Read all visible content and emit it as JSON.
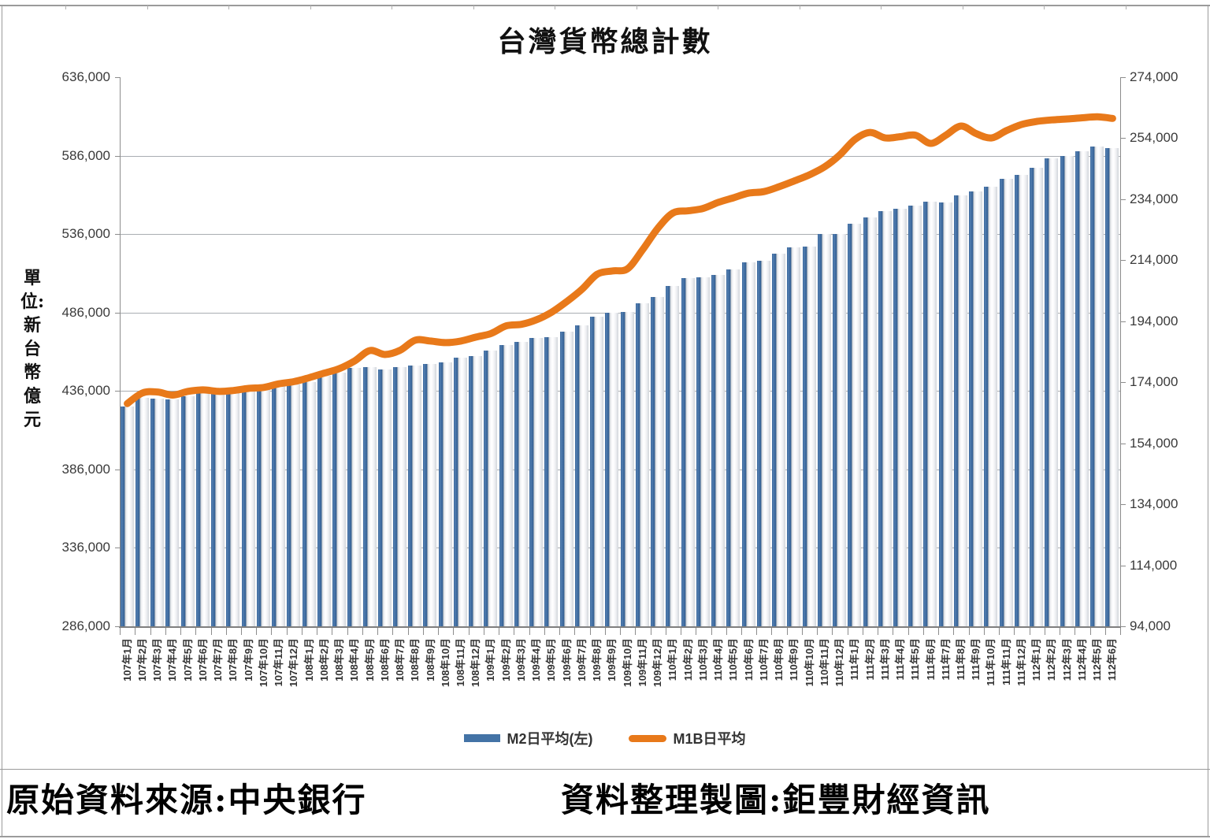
{
  "title": "台灣貨幣總計數",
  "y_axis_left": {
    "unit_label": "單位:新台幣億元",
    "tick_labels": [
      "636,000",
      "586,000",
      "536,000",
      "486,000",
      "436,000",
      "386,000",
      "336,000",
      "286,000"
    ],
    "min": 286000,
    "max": 636000,
    "step": 50000
  },
  "y_axis_right": {
    "tick_labels": [
      "274,000",
      "254,000",
      "234,000",
      "214,000",
      "194,000",
      "174,000",
      "154,000",
      "134,000",
      "114,000",
      "94,000"
    ],
    "min": 94000,
    "max": 274000,
    "step": 20000
  },
  "legend": {
    "m2_label": "M2日平均(左)",
    "m1b_label": "M1B日平均"
  },
  "footer": {
    "source_label": "原始資料來源:中央銀行",
    "credit_label": "資料整理製圖:鉅豐財經資訊"
  },
  "colors": {
    "bar_blue": "#4373A6",
    "line_orange": "#E8791A",
    "gridline": "#A9ADB2",
    "axis": "#8C8C8C"
  },
  "chart_data": {
    "type": "combo",
    "title": "台灣貨幣總計數",
    "unit": "新台幣億元",
    "legend_position": "bottom",
    "grid": true,
    "left_axis_range": [
      286000,
      636000
    ],
    "right_axis_range": [
      94000,
      274000
    ],
    "categories": [
      "107年1月",
      "107年2月",
      "107年3月",
      "107年4月",
      "107年5月",
      "107年6月",
      "107年7月",
      "107年8月",
      "107年9月",
      "107年10月",
      "107年11月",
      "107年12月",
      "108年1月",
      "108年2月",
      "108年3月",
      "108年4月",
      "108年5月",
      "108年6月",
      "108年7月",
      "108年8月",
      "108年9月",
      "108年10月",
      "108年11月",
      "108年12月",
      "109年1月",
      "109年2月",
      "109年3月",
      "109年4月",
      "109年5月",
      "109年6月",
      "109年7月",
      "109年8月",
      "109年9月",
      "109年10月",
      "109年11月",
      "109年12月",
      "110年1月",
      "110年2月",
      "110年3月",
      "110年4月",
      "110年5月",
      "110年6月",
      "110年7月",
      "110年8月",
      "110年9月",
      "110年10月",
      "110年11月",
      "110年12月",
      "111年1月",
      "111年2月",
      "111年3月",
      "111年4月",
      "111年5月",
      "111年6月",
      "111年7月",
      "111年8月",
      "111年9月",
      "111年10月",
      "111年11月",
      "111年12月",
      "112年1月",
      "112年2月",
      "112年3月",
      "112年4月",
      "112年5月",
      "112年6月"
    ],
    "series": [
      {
        "name": "M2日平均(左)",
        "type": "bar",
        "axis": "left",
        "color": "#4373A6",
        "values": [
          426000,
          431500,
          431000,
          430500,
          432500,
          434500,
          436000,
          437500,
          438200,
          437500,
          439200,
          440200,
          441700,
          445500,
          447700,
          450500,
          451200,
          449500,
          451200,
          452300,
          453400,
          454000,
          457500,
          458300,
          461800,
          465500,
          467300,
          469800,
          470300,
          473800,
          478000,
          483400,
          485900,
          486400,
          492000,
          496000,
          503000,
          508000,
          508600,
          510000,
          513500,
          518000,
          519000,
          523500,
          527500,
          528000,
          536100,
          536000,
          542600,
          546600,
          550600,
          552100,
          554100,
          556500,
          556000,
          560500,
          563000,
          566000,
          571000,
          574000,
          578500,
          584500,
          586000,
          589000,
          592000,
          591000
        ]
      },
      {
        "name": "M1B日平均",
        "type": "line",
        "axis": "right",
        "color": "#E8791A",
        "values": [
          167000,
          170500,
          170800,
          169800,
          171000,
          171500,
          171000,
          171300,
          172000,
          172300,
          173500,
          174200,
          175500,
          177000,
          178500,
          181000,
          184400,
          183100,
          184500,
          187800,
          187500,
          187000,
          187500,
          188800,
          190000,
          192500,
          193000,
          194500,
          197000,
          200500,
          204500,
          209400,
          210500,
          211200,
          217500,
          224500,
          229500,
          230200,
          231000,
          233000,
          234500,
          236000,
          236500,
          238100,
          240000,
          242000,
          244600,
          248500,
          253600,
          255900,
          254100,
          254500,
          255000,
          252300,
          255000,
          258000,
          255500,
          254100,
          256500,
          258500,
          259500,
          260000,
          260300,
          260700,
          261000,
          260500
        ]
      }
    ]
  }
}
